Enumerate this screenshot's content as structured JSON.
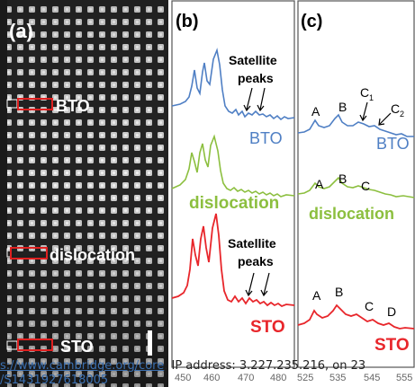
{
  "panel_a": {
    "label": "(a)",
    "regions": [
      "BTO",
      "dislocation",
      "STO"
    ]
  },
  "panel_b": {
    "label": "(b)",
    "curves": [
      "BTO",
      "dislocation",
      "STO"
    ],
    "annotation": "Satellite peaks",
    "annotation_line1": "Satellite",
    "annotation_line2": "peaks",
    "x_ticks": [
      "450",
      "460",
      "470",
      "480"
    ]
  },
  "panel_c": {
    "label": "(c)",
    "curves": [
      "BTO",
      "dislocation",
      "STO"
    ],
    "peak_labels_bto": [
      "A",
      "B",
      "C",
      "C"
    ],
    "peak_subscripts_bto": [
      "1",
      "2"
    ],
    "peak_labels_dislocation": [
      "A",
      "B",
      "C"
    ],
    "peak_labels_sto": [
      "A",
      "B",
      "C",
      "D"
    ],
    "x_ticks": [
      "525",
      "535",
      "545",
      "555"
    ]
  },
  "colors": {
    "bto": "#4f7fc4",
    "dislocation": "#8cbf3f",
    "sto": "#e8262b",
    "annotation_box": "#e02020"
  },
  "watermark": {
    "line1_link": "s://www.cambridge.org/core",
    "line1_rest": ". IP address: 3.227.235.216, on 23",
    "line2": "/S1431927618005"
  }
}
